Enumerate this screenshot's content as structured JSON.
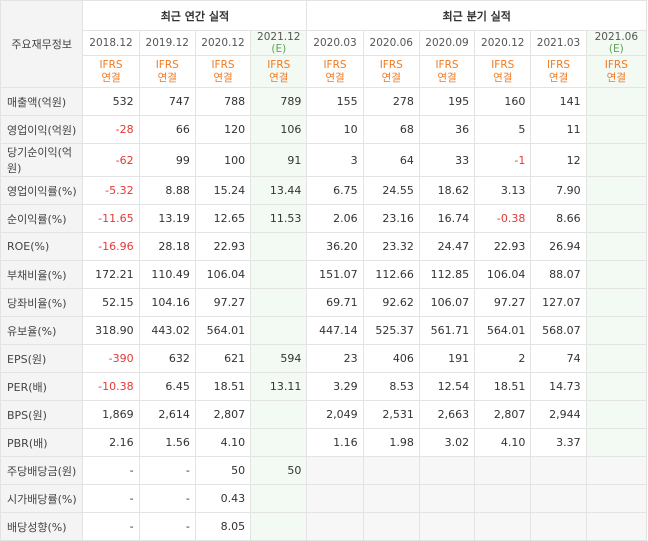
{
  "corner_label": "주요재무정보",
  "annual_title": "최근 연간 실적",
  "quarter_title": "최근 분기 실적",
  "ifrs": "IFRS",
  "consolidated": "연결",
  "est_mark": "(E)",
  "periods": [
    {
      "label": "2018.12"
    },
    {
      "label": "2019.12"
    },
    {
      "label": "2020.12"
    },
    {
      "label": "2021.12",
      "est": true
    },
    {
      "label": "2020.03"
    },
    {
      "label": "2020.06"
    },
    {
      "label": "2020.09"
    },
    {
      "label": "2020.12"
    },
    {
      "label": "2021.03"
    },
    {
      "label": "2021.06",
      "est": true
    }
  ],
  "rows": [
    {
      "label": "매출액(억원)",
      "values": [
        "532",
        "747",
        "788",
        "789",
        "155",
        "278",
        "195",
        "160",
        "141",
        ""
      ]
    },
    {
      "label": "영업이익(억원)",
      "values": [
        "-28",
        "66",
        "120",
        "106",
        "10",
        "68",
        "36",
        "5",
        "11",
        ""
      ]
    },
    {
      "label": "당기순이익(억원)",
      "values": [
        "-62",
        "99",
        "100",
        "91",
        "3",
        "64",
        "33",
        "-1",
        "12",
        ""
      ]
    },
    {
      "label": "영업이익률(%)",
      "values": [
        "-5.32",
        "8.88",
        "15.24",
        "13.44",
        "6.75",
        "24.55",
        "18.62",
        "3.13",
        "7.90",
        ""
      ]
    },
    {
      "label": "순이익률(%)",
      "values": [
        "-11.65",
        "13.19",
        "12.65",
        "11.53",
        "2.06",
        "23.16",
        "16.74",
        "-0.38",
        "8.66",
        ""
      ]
    },
    {
      "label": "ROE(%)",
      "values": [
        "-16.96",
        "28.18",
        "22.93",
        "",
        "36.20",
        "23.32",
        "24.47",
        "22.93",
        "26.94",
        ""
      ]
    },
    {
      "label": "부채비율(%)",
      "values": [
        "172.21",
        "110.49",
        "106.04",
        "",
        "151.07",
        "112.66",
        "112.85",
        "106.04",
        "88.07",
        ""
      ]
    },
    {
      "label": "당좌비율(%)",
      "values": [
        "52.15",
        "104.16",
        "97.27",
        "",
        "69.71",
        "92.62",
        "106.07",
        "97.27",
        "127.07",
        ""
      ]
    },
    {
      "label": "유보율(%)",
      "values": [
        "318.90",
        "443.02",
        "564.01",
        "",
        "447.14",
        "525.37",
        "561.71",
        "564.01",
        "568.07",
        ""
      ]
    },
    {
      "label": "EPS(원)",
      "values": [
        "-390",
        "632",
        "621",
        "594",
        "23",
        "406",
        "191",
        "2",
        "74",
        ""
      ]
    },
    {
      "label": "PER(배)",
      "values": [
        "-10.38",
        "6.45",
        "18.51",
        "13.11",
        "3.29",
        "8.53",
        "12.54",
        "18.51",
        "14.73",
        ""
      ]
    },
    {
      "label": "BPS(원)",
      "values": [
        "1,869",
        "2,614",
        "2,807",
        "",
        "2,049",
        "2,531",
        "2,663",
        "2,807",
        "2,944",
        ""
      ]
    },
    {
      "label": "PBR(배)",
      "values": [
        "2.16",
        "1.56",
        "4.10",
        "",
        "1.16",
        "1.98",
        "3.02",
        "4.10",
        "3.37",
        ""
      ]
    },
    {
      "label": "주당배당금(원)",
      "values": [
        "-",
        "-",
        "50",
        "50",
        "",
        "",
        "",
        "",
        "",
        ""
      ]
    },
    {
      "label": "시가배당률(%)",
      "values": [
        "-",
        "-",
        "0.43",
        "",
        "",
        "",
        "",
        "",
        "",
        ""
      ]
    },
    {
      "label": "배당성향(%)",
      "values": [
        "-",
        "-",
        "8.05",
        "",
        "",
        "",
        "",
        "",
        "",
        ""
      ]
    }
  ],
  "colors": {
    "negative": "#e53935",
    "ifrs": "#f07a24",
    "estimate_bg": "#f3f9f3",
    "estimate_mark": "#5fa356"
  }
}
